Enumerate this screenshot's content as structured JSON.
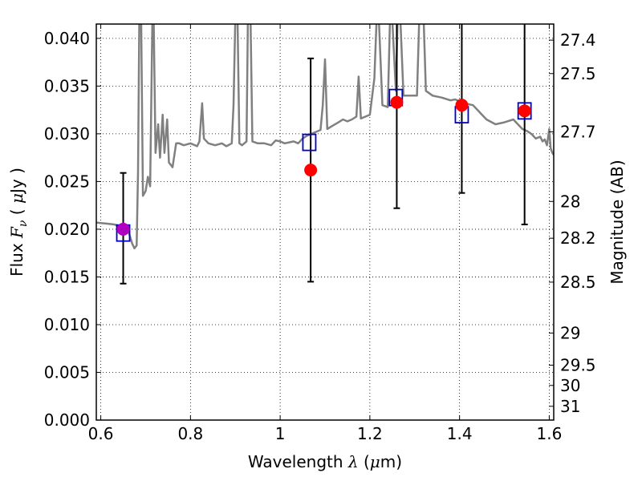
{
  "chart_data": {
    "type": "scatter",
    "xlabel_text": "Wavelength",
    "xlabel_symbol": "λ",
    "xlabel_unit_open": " (",
    "xlabel_unit_symbol": "μ",
    "xlabel_unit_close": "m)",
    "ylabel_text": "Flux",
    "ylabel_symbol": "F",
    "ylabel_subscript": "ν",
    "ylabel_unit_open": " ( ",
    "ylabel_unit_symbol": "μ",
    "ylabel_unit_close": "Jy )",
    "y2label": "Magnitude (AB)",
    "xlim": [
      0.59,
      1.61
    ],
    "ylim": [
      0.0,
      0.0415
    ],
    "x_ticks": [
      {
        "value": 0.6,
        "label": "0.6"
      },
      {
        "value": 0.8,
        "label": "0.8"
      },
      {
        "value": 1.0,
        "label": "1"
      },
      {
        "value": 1.2,
        "label": "1.2"
      },
      {
        "value": 1.4,
        "label": "1.4"
      },
      {
        "value": 1.6,
        "label": "1.6"
      }
    ],
    "y_ticks": [
      {
        "value": 0.0,
        "label": "0.000"
      },
      {
        "value": 0.005,
        "label": "0.005"
      },
      {
        "value": 0.01,
        "label": "0.010"
      },
      {
        "value": 0.015,
        "label": "0.015"
      },
      {
        "value": 0.02,
        "label": "0.020"
      },
      {
        "value": 0.025,
        "label": "0.025"
      },
      {
        "value": 0.03,
        "label": "0.030"
      },
      {
        "value": 0.035,
        "label": "0.035"
      },
      {
        "value": 0.04,
        "label": "0.040"
      }
    ],
    "mag_ticks": [
      {
        "value": 27.4,
        "label": "27.4"
      },
      {
        "value": 27.5,
        "label": "27.5"
      },
      {
        "value": 27.7,
        "label": "27.7"
      },
      {
        "value": 28.0,
        "label": "28"
      },
      {
        "value": 28.2,
        "label": "28.2"
      },
      {
        "value": 28.5,
        "label": "28.5"
      },
      {
        "value": 29.0,
        "label": "29"
      },
      {
        "value": 29.5,
        "label": "29.5"
      },
      {
        "value": 30.0,
        "label": "30"
      },
      {
        "value": 31.0,
        "label": "31"
      }
    ],
    "grid": true,
    "spectrum": {
      "color": "#808080",
      "points": [
        [
          0.59,
          0.0207
        ],
        [
          0.61,
          0.0206
        ],
        [
          0.63,
          0.0205
        ],
        [
          0.65,
          0.0202
        ],
        [
          0.66,
          0.02
        ],
        [
          0.67,
          0.0185
        ],
        [
          0.675,
          0.018
        ],
        [
          0.68,
          0.0183
        ],
        [
          0.683,
          0.026
        ],
        [
          0.686,
          0.042
        ],
        [
          0.69,
          0.042
        ],
        [
          0.694,
          0.0235
        ],
        [
          0.7,
          0.024
        ],
        [
          0.705,
          0.0255
        ],
        [
          0.71,
          0.0245
        ],
        [
          0.715,
          0.042
        ],
        [
          0.718,
          0.042
        ],
        [
          0.722,
          0.028
        ],
        [
          0.728,
          0.031
        ],
        [
          0.732,
          0.0275
        ],
        [
          0.738,
          0.032
        ],
        [
          0.742,
          0.028
        ],
        [
          0.748,
          0.0315
        ],
        [
          0.752,
          0.027
        ],
        [
          0.76,
          0.0265
        ],
        [
          0.768,
          0.029
        ],
        [
          0.775,
          0.029
        ],
        [
          0.785,
          0.0288
        ],
        [
          0.8,
          0.029
        ],
        [
          0.815,
          0.0287
        ],
        [
          0.82,
          0.0292
        ],
        [
          0.826,
          0.0332
        ],
        [
          0.83,
          0.0295
        ],
        [
          0.84,
          0.029
        ],
        [
          0.855,
          0.0288
        ],
        [
          0.87,
          0.029
        ],
        [
          0.88,
          0.0287
        ],
        [
          0.892,
          0.029
        ],
        [
          0.896,
          0.033
        ],
        [
          0.9,
          0.042
        ],
        [
          0.905,
          0.042
        ],
        [
          0.909,
          0.029
        ],
        [
          0.915,
          0.0288
        ],
        [
          0.925,
          0.0292
        ],
        [
          0.928,
          0.042
        ],
        [
          0.934,
          0.042
        ],
        [
          0.938,
          0.0292
        ],
        [
          0.95,
          0.029
        ],
        [
          0.965,
          0.029
        ],
        [
          0.98,
          0.0288
        ],
        [
          0.99,
          0.0293
        ],
        [
          1.0,
          0.0292
        ],
        [
          1.01,
          0.029
        ],
        [
          1.02,
          0.0291
        ],
        [
          1.03,
          0.0292
        ],
        [
          1.04,
          0.029
        ],
        [
          1.05,
          0.0295
        ],
        [
          1.06,
          0.0298
        ],
        [
          1.07,
          0.03
        ],
        [
          1.08,
          0.0302
        ],
        [
          1.09,
          0.0304
        ],
        [
          1.095,
          0.033
        ],
        [
          1.1,
          0.0378
        ],
        [
          1.105,
          0.0305
        ],
        [
          1.115,
          0.0308
        ],
        [
          1.13,
          0.0312
        ],
        [
          1.14,
          0.0315
        ],
        [
          1.15,
          0.0313
        ],
        [
          1.16,
          0.0315
        ],
        [
          1.17,
          0.0318
        ],
        [
          1.175,
          0.036
        ],
        [
          1.18,
          0.0316
        ],
        [
          1.19,
          0.0318
        ],
        [
          1.2,
          0.032
        ],
        [
          1.21,
          0.0358
        ],
        [
          1.215,
          0.042
        ],
        [
          1.22,
          0.042
        ],
        [
          1.228,
          0.033
        ],
        [
          1.24,
          0.0328
        ],
        [
          1.245,
          0.042
        ],
        [
          1.25,
          0.042
        ],
        [
          1.258,
          0.0345
        ],
        [
          1.262,
          0.042
        ],
        [
          1.268,
          0.042
        ],
        [
          1.275,
          0.034
        ],
        [
          1.29,
          0.034
        ],
        [
          1.305,
          0.034
        ],
        [
          1.31,
          0.042
        ],
        [
          1.32,
          0.042
        ],
        [
          1.325,
          0.0345
        ],
        [
          1.34,
          0.034
        ],
        [
          1.36,
          0.0338
        ],
        [
          1.38,
          0.0335
        ],
        [
          1.39,
          0.0336
        ],
        [
          1.41,
          0.0332
        ],
        [
          1.43,
          0.033
        ],
        [
          1.44,
          0.0325
        ],
        [
          1.45,
          0.032
        ],
        [
          1.46,
          0.0315
        ],
        [
          1.48,
          0.031
        ],
        [
          1.5,
          0.0312
        ],
        [
          1.52,
          0.0315
        ],
        [
          1.53,
          0.031
        ],
        [
          1.54,
          0.0305
        ],
        [
          1.55,
          0.0303
        ],
        [
          1.56,
          0.03
        ],
        [
          1.57,
          0.0295
        ],
        [
          1.58,
          0.0297
        ],
        [
          1.585,
          0.0292
        ],
        [
          1.59,
          0.0294
        ],
        [
          1.595,
          0.0288
        ],
        [
          1.6,
          0.0305
        ],
        [
          1.603,
          0.0285
        ],
        [
          1.607,
          0.028
        ],
        [
          1.61,
          0.0278
        ]
      ]
    },
    "observed": {
      "color": "#ff0000",
      "points": [
        {
          "x": 0.65,
          "y": 0.02,
          "ylo": 0.0143,
          "yhi": 0.0259
        },
        {
          "x": 1.068,
          "y": 0.0262,
          "ylo": 0.0145,
          "yhi": 0.0379
        },
        {
          "x": 1.26,
          "y": 0.0333,
          "ylo": 0.0222,
          "yhi": 0.042
        },
        {
          "x": 1.405,
          "y": 0.033,
          "ylo": 0.0238,
          "yhi": 0.042
        },
        {
          "x": 1.545,
          "y": 0.0324,
          "ylo": 0.0205,
          "yhi": 0.042
        }
      ]
    },
    "first_point_color": "#b000c0",
    "model": {
      "color": "#0000cc",
      "points": [
        {
          "x": 0.65,
          "y": 0.0196
        },
        {
          "x": 1.065,
          "y": 0.0291
        },
        {
          "x": 1.258,
          "y": 0.0338
        },
        {
          "x": 1.405,
          "y": 0.032
        },
        {
          "x": 1.545,
          "y": 0.0324
        }
      ]
    }
  }
}
